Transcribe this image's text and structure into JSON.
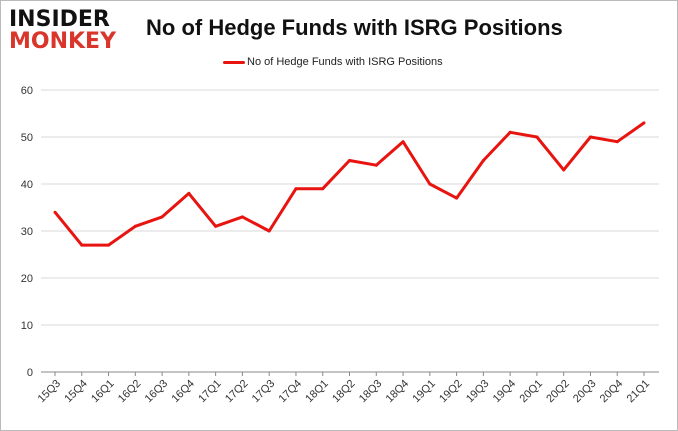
{
  "logo": {
    "line1": "INSIDER",
    "line2": "MONKEY"
  },
  "chart_data": {
    "type": "line",
    "title": "No of Hedge Funds with ISRG Positions",
    "xlabel": "",
    "ylabel": "",
    "ylim": [
      0,
      60
    ],
    "yticks": [
      0,
      10,
      20,
      30,
      40,
      50,
      60
    ],
    "grid": true,
    "legend": "top-center",
    "color": "#e8140f",
    "categories": [
      "15Q3",
      "15Q4",
      "16Q1",
      "16Q2",
      "16Q3",
      "16Q4",
      "17Q1",
      "17Q2",
      "17Q3",
      "17Q4",
      "18Q1",
      "18Q2",
      "18Q3",
      "18Q4",
      "19Q1",
      "19Q2",
      "19Q3",
      "19Q4",
      "20Q1",
      "20Q2",
      "20Q3",
      "20Q4",
      "21Q1"
    ],
    "series": [
      {
        "name": "No of Hedge Funds with ISRG Positions",
        "values": [
          34,
          27,
          27,
          31,
          33,
          38,
          31,
          33,
          30,
          39,
          39,
          45,
          44,
          49,
          40,
          37,
          45,
          51,
          50,
          43,
          50,
          49,
          53
        ]
      }
    ]
  }
}
